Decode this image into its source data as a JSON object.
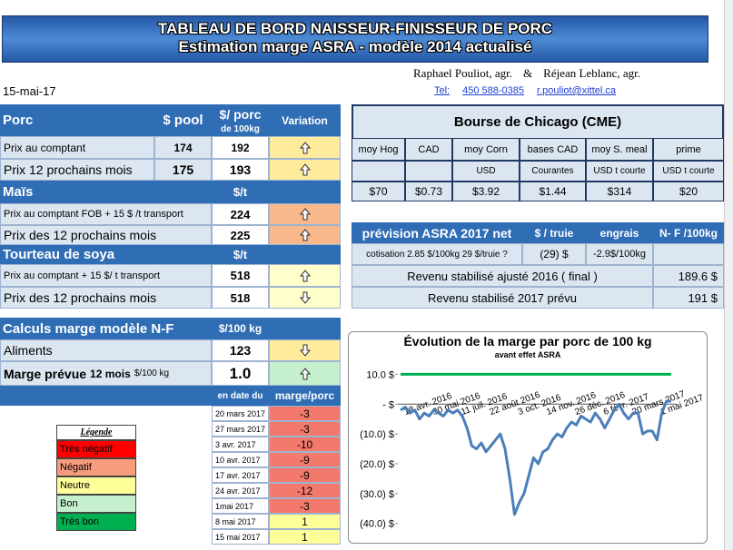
{
  "header": {
    "title": "TABLEAU DE BORD NAISSEUR-FINISSEUR DE PORC",
    "subtitle": "Estimation marge ASRA - modèle 2014 actualisé",
    "authors": [
      "Raphael Pouliot, agr.",
      "&",
      "Réjean Leblanc, agr."
    ],
    "date": "15-mai-17",
    "contact": [
      "Tel:",
      "450 588-0385",
      "r.pouliot@xittel.ca"
    ]
  },
  "porc": {
    "title": "Porc",
    "columns": [
      "$ pool",
      "$/ porc",
      "de 100kg",
      "Variation"
    ],
    "rows": [
      [
        "Prix au comptant",
        174,
        192
      ],
      [
        "Prix 12 prochains mois",
        175,
        193
      ]
    ]
  },
  "mais": {
    "title": "Maïs",
    "unit": "$/t",
    "rows": [
      [
        "Prix au comptant  FOB + 15 $ /t transport",
        224
      ],
      [
        "Prix des 12 prochains mois",
        225
      ]
    ]
  },
  "soya": {
    "title": "Tourteau de soya",
    "unit": "$/t",
    "rows": [
      [
        "Prix au comptant  + 15 $/ t  transport",
        518
      ],
      [
        "Prix des 12 prochains mois",
        518
      ]
    ]
  },
  "calculs": {
    "title": "Calculs marge  modèle N-F",
    "unit": "$/100 kg",
    "aliments": [
      "Aliments",
      123
    ],
    "marge": [
      "Marge prévue",
      "12 mois",
      "$/100 kg",
      "1.0"
    ]
  },
  "history": {
    "columns": [
      "en date du",
      "marge/porc"
    ],
    "rows": [
      [
        "20 mars 2017",
        -3
      ],
      [
        "27 mars 2017",
        -3
      ],
      [
        "3 avr. 2017",
        -10
      ],
      [
        "10 avr. 2017",
        -9
      ],
      [
        "17 avr. 2017",
        -9
      ],
      [
        "24 avr. 2017",
        -12
      ],
      [
        "1mai 2017",
        -3
      ],
      [
        "8 mai 2017",
        1
      ],
      [
        "15 mai 2017",
        1
      ]
    ]
  },
  "legend": {
    "title": "Légende",
    "items": [
      "Très négatif",
      "Négatif",
      "Neutre",
      "Bon",
      "Très bon"
    ]
  },
  "cme": {
    "title": "Bourse de Chicago (CME)",
    "columns": [
      "moy Hog",
      "CAD",
      "moy Corn",
      "bases CAD",
      "moy S. meal",
      "prime"
    ],
    "units": [
      "USD",
      "Courantes",
      "USD t courte",
      "USD t courte"
    ],
    "values": [
      "$70",
      "$0.73",
      "$3.92",
      "$1.44",
      "$314",
      "$20"
    ]
  },
  "asra": {
    "columns": [
      "prévision ASRA 2017 net",
      "$ / truie",
      "engrais",
      "N- F /100kg"
    ],
    "cotisation": [
      "cotisation 2.85 $/100kg  29 $/truie ?",
      "(29) $",
      "-2.9$/100kg"
    ],
    "rows": [
      [
        "Revenu stabilisé ajusté 2016 ( final )",
        "189.6 $"
      ],
      [
        "Revenu stabilisé 2017 prévu",
        "191 $"
      ]
    ]
  },
  "chart_data": {
    "type": "line",
    "title": "Évolution de la marge par porc de 100 kg",
    "subtitle": "avant effet ASRA",
    "categories": [
      null,
      "18 avr. 2016",
      null,
      null,
      null,
      null,
      null,
      "30 mai 2016",
      null,
      null,
      null,
      null,
      null,
      "11 juil. 2016",
      null,
      null,
      null,
      null,
      null,
      "22 août 2016",
      null,
      null,
      null,
      null,
      null,
      "3 oct. 2016",
      null,
      null,
      null,
      null,
      null,
      "14 nov. 2016",
      null,
      null,
      null,
      null,
      null,
      "26 déc. 2016",
      null,
      null,
      null,
      null,
      null,
      "6 févr. 2017",
      null,
      null,
      null,
      null,
      null,
      "20 mars 2017",
      null,
      null,
      null,
      null,
      null,
      "1 mai 2017",
      null,
      null
    ],
    "series": [
      {
        "color": "#4a7ebb",
        "values": [
          -2,
          -1,
          -3,
          -2,
          -5,
          -3,
          -4,
          -2,
          -3,
          -4,
          -2,
          -3,
          -2,
          -4,
          -8,
          -14,
          -15,
          -13,
          -16,
          -14,
          -12,
          -10,
          -15,
          -25,
          -37,
          -33,
          -30,
          -24,
          -18,
          -20,
          -16,
          -15,
          -12,
          -10,
          -11,
          -8,
          -6,
          -7,
          -4,
          -5,
          -6,
          -3,
          -5,
          -8,
          -5,
          -2,
          0,
          -3,
          -5,
          -3,
          -3,
          -10,
          -9,
          -9,
          -12,
          -3,
          1,
          1
        ]
      }
    ],
    "reference_line": {
      "value": 10,
      "color": "#00b050"
    },
    "ylim": [
      -41,
      15
    ],
    "yticks": [
      {
        "value": 10,
        "label": "10.0 $"
      },
      {
        "value": 0,
        "label": "-  $"
      },
      {
        "value": -10,
        "label": "(10.0) $"
      },
      {
        "value": -20,
        "label": "(20.0) $"
      },
      {
        "value": -30,
        "label": "(30.0) $"
      },
      {
        "value": -40,
        "label": "(40.0) $"
      }
    ]
  }
}
